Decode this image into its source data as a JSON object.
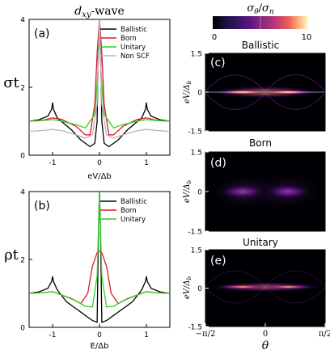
{
  "figure_title": "d_xy-wave",
  "colorbar": {
    "label": "σθ/σn",
    "tick_min": "0",
    "tick_max": "10",
    "range": [
      0,
      10
    ],
    "colormap": "magma"
  },
  "chart_data": [
    {
      "panel": "(a)",
      "type": "line",
      "ylabel": "σt",
      "xlabel": "eV/Δb",
      "xlim": [
        -1.5,
        1.5
      ],
      "ylim": [
        0,
        4
      ],
      "xticks": [
        "-1",
        "0",
        "1"
      ],
      "yticks": [
        "0",
        "2",
        "4"
      ],
      "legend": "top-right",
      "series": [
        {
          "name": "Ballistic",
          "color": "#000000",
          "x": [
            -1.5,
            -1.3,
            -1.1,
            -1.02,
            -1.0,
            -0.98,
            -0.9,
            -0.6,
            -0.4,
            -0.2,
            -0.1,
            -0.05,
            -0.02,
            0,
            0.02,
            0.05,
            0.1,
            0.2,
            0.4,
            0.6,
            0.9,
            0.98,
            1.0,
            1.02,
            1.1,
            1.3,
            1.5
          ],
          "y": [
            1.0,
            1.04,
            1.15,
            1.35,
            1.55,
            1.35,
            1.1,
            0.75,
            0.45,
            0.25,
            0.35,
            1.0,
            3.5,
            4.0,
            3.5,
            1.0,
            0.35,
            0.25,
            0.45,
            0.75,
            1.1,
            1.35,
            1.55,
            1.35,
            1.15,
            1.04,
            1.0
          ]
        },
        {
          "name": "Born",
          "color": "#e0191f",
          "x": [
            -1.5,
            -1.2,
            -1.0,
            -0.8,
            -0.5,
            -0.3,
            -0.2,
            -0.1,
            -0.05,
            0,
            0.05,
            0.1,
            0.2,
            0.3,
            0.5,
            0.8,
            1.0,
            1.2,
            1.5
          ],
          "y": [
            1.0,
            1.03,
            1.1,
            1.05,
            0.85,
            0.6,
            0.6,
            1.5,
            3.0,
            4.0,
            3.0,
            1.5,
            0.6,
            0.6,
            0.85,
            1.05,
            1.1,
            1.03,
            1.0
          ]
        },
        {
          "name": "Unitary",
          "color": "#33cc22",
          "x": [
            -1.5,
            -1.2,
            -1.0,
            -0.8,
            -0.5,
            -0.3,
            -0.1,
            -0.03,
            0,
            0.03,
            0.1,
            0.3,
            0.5,
            0.8,
            1.0,
            1.2,
            1.5
          ],
          "y": [
            1.0,
            1.02,
            1.05,
            1.0,
            0.9,
            0.8,
            1.2,
            2.5,
            4.0,
            2.5,
            1.2,
            0.8,
            0.9,
            1.0,
            1.05,
            1.02,
            1.0
          ]
        },
        {
          "name": "Non SCF",
          "color": "#b8b0cc",
          "x": [
            -1.5,
            -1.2,
            -1.0,
            -0.8,
            -0.5,
            -0.3,
            -0.15,
            -0.05,
            0,
            0.05,
            0.15,
            0.3,
            0.5,
            0.8,
            1.0,
            1.2,
            1.5
          ],
          "y": [
            0.7,
            0.73,
            0.76,
            0.72,
            0.6,
            0.5,
            0.6,
            1.5,
            4.0,
            1.5,
            0.6,
            0.5,
            0.6,
            0.72,
            0.76,
            0.73,
            0.7
          ]
        }
      ]
    },
    {
      "panel": "(b)",
      "type": "line",
      "ylabel": "ρt",
      "xlabel": "E/Δb",
      "xlim": [
        -1.5,
        1.5
      ],
      "ylim": [
        0,
        4
      ],
      "xticks": [
        "-1",
        "0",
        "1"
      ],
      "yticks": [
        "0",
        "2",
        "4"
      ],
      "legend": "top-right",
      "series": [
        {
          "name": "Ballistic",
          "color": "#000000",
          "x": [
            -1.5,
            -1.3,
            -1.1,
            -1.02,
            -1.0,
            -0.98,
            -0.9,
            -0.7,
            -0.5,
            -0.3,
            -0.15,
            -0.05,
            -0.02,
            0,
            0.02,
            0.05,
            0.15,
            0.3,
            0.5,
            0.7,
            0.9,
            0.98,
            1.0,
            1.02,
            1.1,
            1.3,
            1.5
          ],
          "y": [
            1.0,
            1.04,
            1.15,
            1.35,
            1.5,
            1.35,
            1.1,
            0.75,
            0.55,
            0.35,
            0.2,
            0.15,
            3.0,
            4.0,
            3.0,
            0.15,
            0.2,
            0.35,
            0.55,
            0.75,
            1.1,
            1.35,
            1.5,
            1.35,
            1.15,
            1.04,
            1.0
          ]
        },
        {
          "name": "Born",
          "color": "#e0191f",
          "x": [
            -1.5,
            -1.2,
            -1.0,
            -0.8,
            -0.6,
            -0.4,
            -0.25,
            -0.15,
            -0.05,
            0,
            0.05,
            0.15,
            0.25,
            0.4,
            0.6,
            0.8,
            1.0,
            1.2,
            1.5
          ],
          "y": [
            1.0,
            1.02,
            1.05,
            0.95,
            0.85,
            0.7,
            1.0,
            1.8,
            2.2,
            2.25,
            2.2,
            1.8,
            1.0,
            0.7,
            0.85,
            0.95,
            1.05,
            1.02,
            1.0
          ]
        },
        {
          "name": "Unitary",
          "color": "#33cc22",
          "x": [
            -1.5,
            -1.2,
            -1.0,
            -0.8,
            -0.5,
            -0.3,
            -0.15,
            -0.05,
            -0.02,
            0,
            0.02,
            0.05,
            0.15,
            0.3,
            0.5,
            0.8,
            1.0,
            1.2,
            1.5
          ],
          "y": [
            1.0,
            1.02,
            1.05,
            0.95,
            0.78,
            0.62,
            0.6,
            1.5,
            3.0,
            4.0,
            3.0,
            1.5,
            0.6,
            0.62,
            0.78,
            0.95,
            1.05,
            1.02,
            1.0
          ]
        }
      ]
    },
    {
      "panel": "(c)",
      "type": "heatmap",
      "title": "Ballistic",
      "ylabel": "eV/Δb",
      "ylim": [
        -1.5,
        1.5
      ],
      "yticks": [
        "1.5",
        "0",
        "-1.5"
      ],
      "peak_level": 10,
      "zero_bias_band": true
    },
    {
      "panel": "(d)",
      "type": "heatmap",
      "title": "Born",
      "ylabel": "eV/Δb",
      "ylim": [
        -1.5,
        1.5
      ],
      "yticks": [
        "1.5",
        "0",
        "-1.5"
      ],
      "peak_level": 4,
      "zero_bias_band": false
    },
    {
      "panel": "(e)",
      "type": "heatmap",
      "title": "Unitary",
      "ylabel": "eV/Δb",
      "ylim": [
        -1.5,
        1.5
      ],
      "yticks": [
        "1.5",
        "0",
        "-1.5"
      ],
      "xlabel": "θ",
      "xticks": [
        "−π/2",
        "0",
        "π/2"
      ],
      "peak_level": 8,
      "zero_bias_band": true
    }
  ]
}
